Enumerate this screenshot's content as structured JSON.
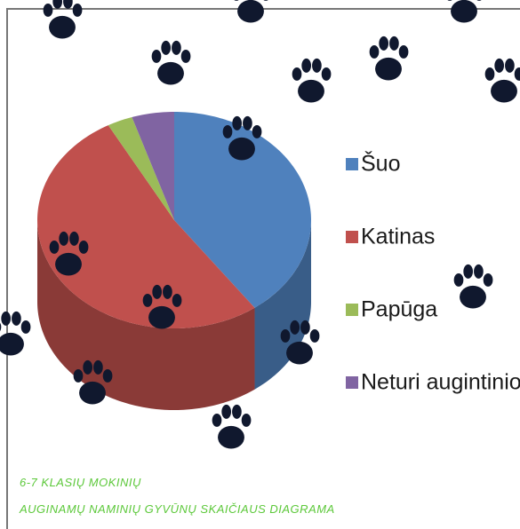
{
  "chart_data": {
    "type": "pie3d",
    "title": [
      "6-7 KLASIŲ MOKINIŲ",
      "AUGINAMŲ NAMINIŲ GYVŪNŲ SKAIČIAUS DIAGRAMA"
    ],
    "categories": [
      "Šuo",
      "Katinas",
      "Papūga",
      "Neturi augintinio"
    ],
    "values": [
      40,
      52,
      3,
      5
    ],
    "colors": [
      "#4f81bd",
      "#c0504d",
      "#9bbb59",
      "#8064a2"
    ],
    "title_color": "#5cc83a",
    "legend": "right"
  }
}
